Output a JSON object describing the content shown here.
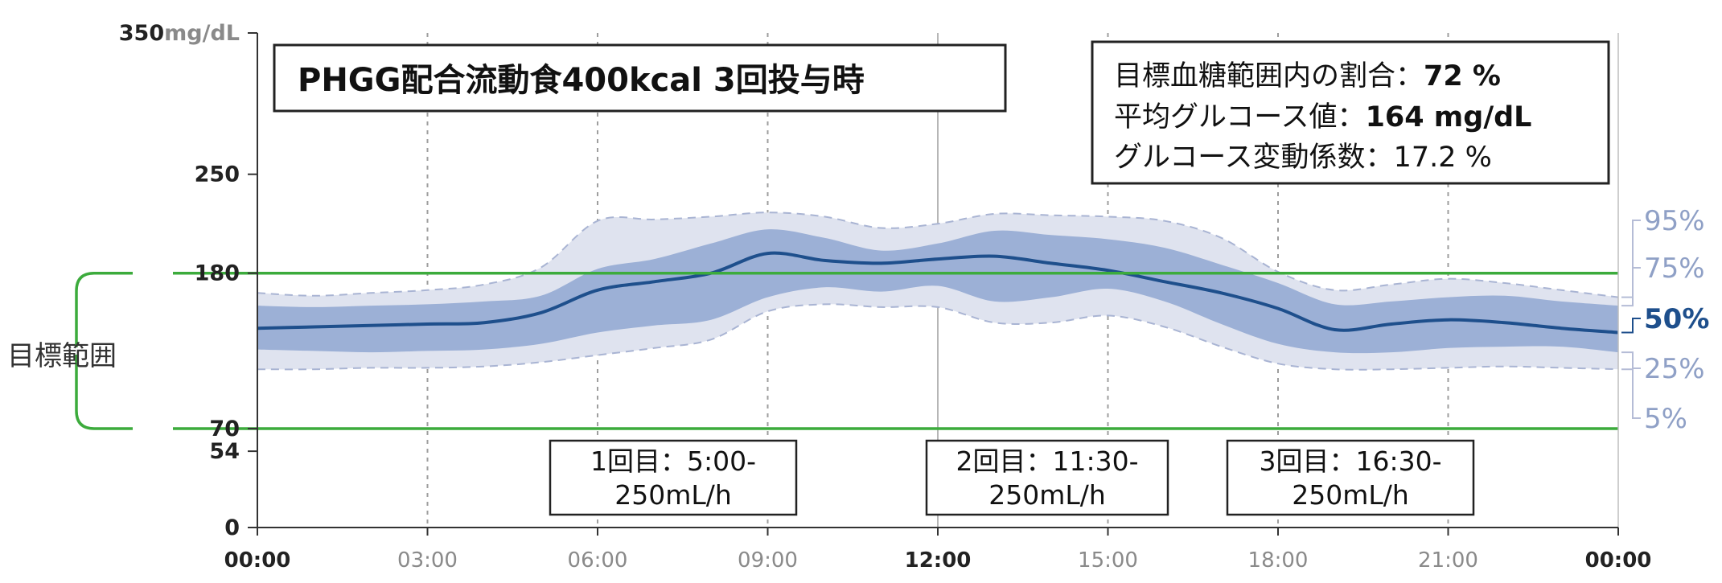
{
  "title": "PHGG配合流動食400kcal 3回投与時",
  "stats": [
    {
      "label": "目標血糖範囲内の割合：",
      "value": "72 %",
      "bold": true
    },
    {
      "label": "平均グルコース値：",
      "value": "164 mg/dL",
      "bold": true
    },
    {
      "label": "グルコース変動係数：",
      "value": "17.2 %",
      "bold": false
    }
  ],
  "target_range_label": "目標範囲",
  "annotations": [
    {
      "line1": "1回目：5:00-",
      "line2": "250mL/h"
    },
    {
      "line1": "2回目：11:30-",
      "line2": "250mL/h"
    },
    {
      "line1": "3回目：16:30-",
      "line2": "250mL/h"
    }
  ],
  "colors": {
    "target": "#3cab3c",
    "band_outer": "#dfe3ef",
    "band_inner": "#9cb0d6",
    "median": "#1e4f8c",
    "outer_border": "#a9b4d3",
    "grid": "#9e9e9e",
    "axis": "#333333"
  },
  "chart_data": {
    "type": "area",
    "x": [
      "00:00",
      "01:00",
      "02:00",
      "03:00",
      "04:00",
      "05:00",
      "06:00",
      "07:00",
      "08:00",
      "09:00",
      "10:00",
      "11:00",
      "12:00",
      "13:00",
      "14:00",
      "15:00",
      "16:00",
      "17:00",
      "18:00",
      "19:00",
      "20:00",
      "21:00",
      "22:00",
      "23:00",
      "24:00"
    ],
    "xticks": [
      "00:00",
      "03:00",
      "06:00",
      "09:00",
      "12:00",
      "15:00",
      "18:00",
      "21:00",
      "00:00"
    ],
    "yticks": [
      {
        "value": 0,
        "label": "0"
      },
      {
        "value": 54,
        "label": "54"
      },
      {
        "value": 70,
        "label": "70"
      },
      {
        "value": 180,
        "label": "180"
      },
      {
        "value": 250,
        "label": "250"
      },
      {
        "value": 350,
        "label": "350",
        "unit": "mg/dL"
      }
    ],
    "target_range": [
      70,
      180
    ],
    "series": [
      {
        "name": "95%",
        "values": [
          166,
          164,
          166,
          168,
          172,
          184,
          217,
          218,
          220,
          223,
          220,
          212,
          215,
          222,
          221,
          220,
          217,
          205,
          181,
          168,
          172,
          176,
          173,
          168,
          163
        ]
      },
      {
        "name": "75%",
        "values": [
          157,
          156,
          157,
          158,
          160,
          164,
          183,
          190,
          201,
          211,
          205,
          196,
          201,
          210,
          207,
          204,
          198,
          186,
          173,
          158,
          160,
          163,
          164,
          160,
          157
        ]
      },
      {
        "name": "50%",
        "values": [
          141,
          142,
          143,
          144,
          145,
          152,
          168,
          174,
          180,
          194,
          189,
          187,
          190,
          192,
          187,
          182,
          174,
          166,
          155,
          140,
          144,
          147,
          145,
          141,
          138
        ]
      },
      {
        "name": "25%",
        "values": [
          126,
          125,
          124,
          125,
          126,
          130,
          138,
          143,
          147,
          163,
          170,
          167,
          171,
          160,
          163,
          169,
          160,
          144,
          130,
          124,
          124,
          127,
          128,
          128,
          124
        ]
      },
      {
        "name": "5%",
        "values": [
          112,
          112,
          113,
          113,
          114,
          117,
          122,
          127,
          133,
          153,
          158,
          156,
          156,
          145,
          145,
          150,
          142,
          128,
          116,
          112,
          112,
          113,
          114,
          113,
          112
        ]
      }
    ],
    "ylim": [
      0,
      350
    ],
    "grid": "vertical"
  }
}
